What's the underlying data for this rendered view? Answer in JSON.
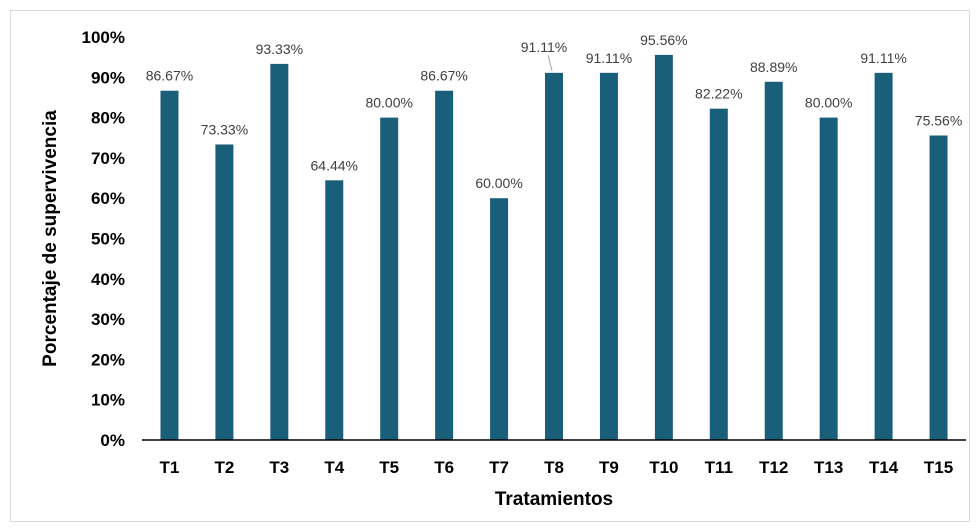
{
  "chart_data": {
    "type": "bar",
    "title": "",
    "xlabel": "Tratamientos",
    "ylabel": "Porcentaje de supervivencia",
    "categories": [
      "T1",
      "T2",
      "T3",
      "T4",
      "T5",
      "T6",
      "T7",
      "T8",
      "T9",
      "T10",
      "T11",
      "T12",
      "T13",
      "T14",
      "T15"
    ],
    "values": [
      86.67,
      73.33,
      93.33,
      64.44,
      80.0,
      86.67,
      60.0,
      91.11,
      91.11,
      95.56,
      82.22,
      88.89,
      80.0,
      91.11,
      75.56
    ],
    "data_labels": [
      "86.67%",
      "73.33%",
      "93.33%",
      "64.44%",
      "80.00%",
      "86.67%",
      "60.00%",
      "91.11%",
      "91.11%",
      "95.56%",
      "82.22%",
      "88.89%",
      "80.00%",
      "91.11%",
      "75.56%"
    ],
    "yticks": [
      "0%",
      "10%",
      "20%",
      "30%",
      "40%",
      "50%",
      "60%",
      "70%",
      "80%",
      "90%",
      "100%"
    ],
    "ylim": [
      0,
      100
    ],
    "grid": false,
    "legend": "none",
    "bar_color": "#1a5f7a"
  }
}
